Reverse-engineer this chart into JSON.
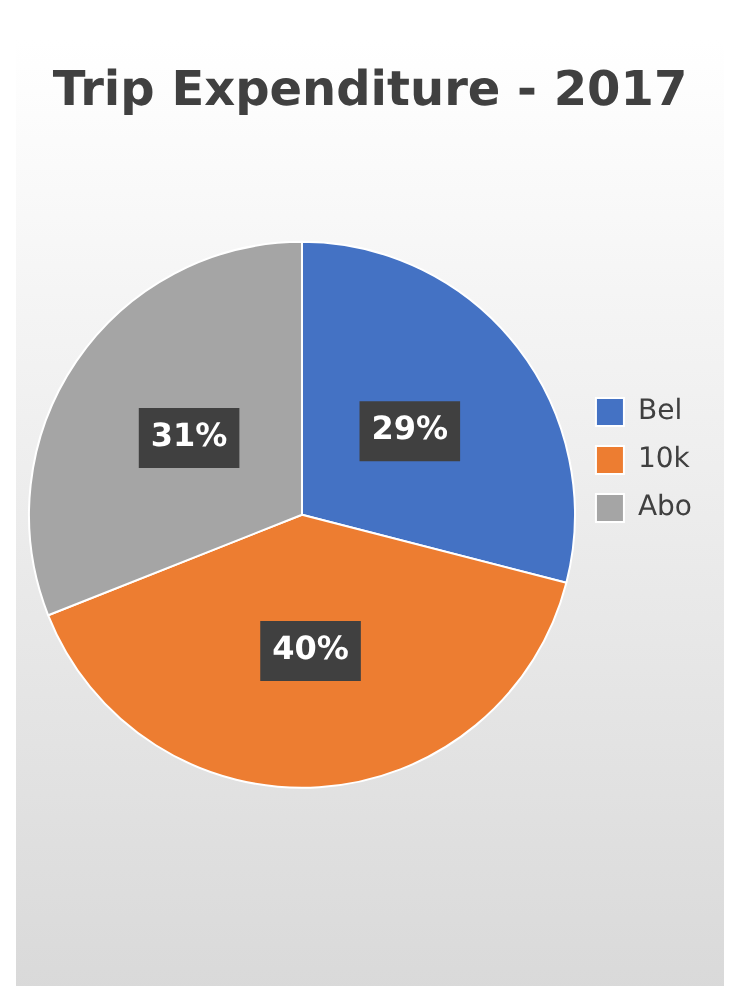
{
  "chart_data": {
    "type": "pie",
    "title": "Trip Expenditure - 2017",
    "categories": [
      "Bel",
      "10k",
      "Abo"
    ],
    "values": [
      29,
      40,
      31
    ],
    "colors": [
      "#4472c4",
      "#ed7d31",
      "#a5a5a5"
    ],
    "value_labels": [
      "29%",
      "40%",
      "31%"
    ],
    "legend": "right"
  }
}
